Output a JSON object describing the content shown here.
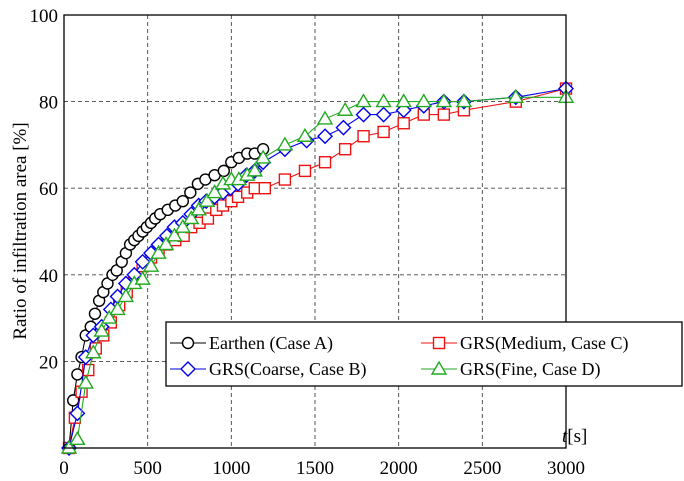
{
  "chart_data": {
    "type": "line",
    "title": "",
    "xlabel_italic": "t",
    "xlabel_unit": "[s]",
    "ylabel": "Ratio of infiltration area [%]",
    "xlim": [
      0,
      3000
    ],
    "ylim": [
      0,
      100
    ],
    "x_ticks": [
      "0",
      "500",
      "1000",
      "1500",
      "2000",
      "2500",
      "3000"
    ],
    "y_ticks": [
      "20",
      "40",
      "60",
      "80",
      "100"
    ],
    "grid": "dashed",
    "legend_placement": "lower-right",
    "series": [
      {
        "name": "Earthen (Case A)",
        "marker": "circle",
        "color": "#000000",
        "points": [
          [
            30,
            0
          ],
          [
            55,
            11
          ],
          [
            80,
            17
          ],
          [
            105,
            21
          ],
          [
            130,
            26
          ],
          [
            160,
            28
          ],
          [
            185,
            31
          ],
          [
            210,
            34
          ],
          [
            235,
            36
          ],
          [
            260,
            38
          ],
          [
            290,
            40
          ],
          [
            315,
            41
          ],
          [
            345,
            43
          ],
          [
            370,
            45
          ],
          [
            395,
            47
          ],
          [
            420,
            48
          ],
          [
            445,
            49
          ],
          [
            470,
            50
          ],
          [
            495,
            51
          ],
          [
            520,
            52
          ],
          [
            545,
            53
          ],
          [
            575,
            54
          ],
          [
            620,
            55
          ],
          [
            665,
            56
          ],
          [
            710,
            57
          ],
          [
            755,
            59
          ],
          [
            800,
            61
          ],
          [
            845,
            62
          ],
          [
            900,
            63
          ],
          [
            955,
            64
          ],
          [
            1000,
            66
          ],
          [
            1045,
            67
          ],
          [
            1095,
            68
          ],
          [
            1140,
            68
          ],
          [
            1190,
            69
          ]
        ]
      },
      {
        "name": "GRS(Medium, Case C)",
        "marker": "square",
        "color": "#ee1111",
        "points": [
          [
            30,
            0
          ],
          [
            65,
            7
          ],
          [
            105,
            13
          ],
          [
            145,
            18
          ],
          [
            190,
            23
          ],
          [
            235,
            26
          ],
          [
            280,
            29
          ],
          [
            330,
            33
          ],
          [
            375,
            36
          ],
          [
            420,
            39
          ],
          [
            470,
            42
          ],
          [
            520,
            44
          ],
          [
            565,
            46
          ],
          [
            610,
            47
          ],
          [
            665,
            48
          ],
          [
            715,
            49
          ],
          [
            760,
            51
          ],
          [
            810,
            52
          ],
          [
            860,
            53
          ],
          [
            910,
            55
          ],
          [
            950,
            56
          ],
          [
            1000,
            57
          ],
          [
            1040,
            58
          ],
          [
            1095,
            59
          ],
          [
            1140,
            60
          ],
          [
            1200,
            60
          ],
          [
            1320,
            62
          ],
          [
            1440,
            64
          ],
          [
            1560,
            66
          ],
          [
            1680,
            69
          ],
          [
            1790,
            72
          ],
          [
            1910,
            73
          ],
          [
            2030,
            75
          ],
          [
            2150,
            77
          ],
          [
            2270,
            77
          ],
          [
            2390,
            78
          ],
          [
            2700,
            80
          ],
          [
            3000,
            83
          ]
        ]
      },
      {
        "name": "GRS(Coarse, Case B)",
        "marker": "diamond",
        "color": "#0000ee",
        "points": [
          [
            30,
            0
          ],
          [
            80,
            8
          ],
          [
            130,
            21
          ],
          [
            175,
            26
          ],
          [
            225,
            28
          ],
          [
            280,
            32
          ],
          [
            320,
            35
          ],
          [
            370,
            38
          ],
          [
            420,
            40
          ],
          [
            470,
            43
          ],
          [
            520,
            45
          ],
          [
            565,
            47
          ],
          [
            615,
            49
          ],
          [
            660,
            51
          ],
          [
            710,
            52
          ],
          [
            760,
            54
          ],
          [
            805,
            56
          ],
          [
            850,
            57
          ],
          [
            900,
            58
          ],
          [
            950,
            59
          ],
          [
            995,
            60
          ],
          [
            1040,
            61
          ],
          [
            1090,
            63
          ],
          [
            1140,
            64
          ],
          [
            1190,
            66
          ],
          [
            1320,
            69
          ],
          [
            1450,
            71
          ],
          [
            1560,
            72
          ],
          [
            1670,
            74
          ],
          [
            1790,
            77
          ],
          [
            1910,
            77
          ],
          [
            2030,
            78
          ],
          [
            2150,
            79
          ],
          [
            2270,
            80
          ],
          [
            2390,
            80
          ],
          [
            2700,
            81
          ],
          [
            3000,
            83
          ]
        ]
      },
      {
        "name": "GRS(Fine, Case D)",
        "marker": "triangle",
        "color": "#22aa22",
        "points": [
          [
            30,
            0
          ],
          [
            80,
            2
          ],
          [
            130,
            15
          ],
          [
            175,
            22
          ],
          [
            225,
            27
          ],
          [
            270,
            30
          ],
          [
            320,
            32
          ],
          [
            370,
            35
          ],
          [
            420,
            38
          ],
          [
            470,
            39
          ],
          [
            520,
            42
          ],
          [
            565,
            45
          ],
          [
            610,
            47
          ],
          [
            660,
            49
          ],
          [
            710,
            51
          ],
          [
            760,
            53
          ],
          [
            805,
            55
          ],
          [
            855,
            57
          ],
          [
            900,
            59
          ],
          [
            950,
            61
          ],
          [
            1000,
            62
          ],
          [
            1045,
            62
          ],
          [
            1095,
            63
          ],
          [
            1140,
            64
          ],
          [
            1190,
            67
          ],
          [
            1320,
            70
          ],
          [
            1440,
            72
          ],
          [
            1560,
            76
          ],
          [
            1680,
            78
          ],
          [
            1790,
            80
          ],
          [
            1910,
            80
          ],
          [
            2030,
            80
          ],
          [
            2150,
            80
          ],
          [
            2270,
            80
          ],
          [
            2390,
            80
          ],
          [
            2700,
            81
          ],
          [
            3000,
            81
          ]
        ]
      }
    ],
    "legend_layout": [
      [
        "Earthen (Case A)",
        "GRS(Medium, Case C)"
      ],
      [
        "GRS(Coarse, Case B)",
        "GRS(Fine, Case D)"
      ]
    ]
  }
}
